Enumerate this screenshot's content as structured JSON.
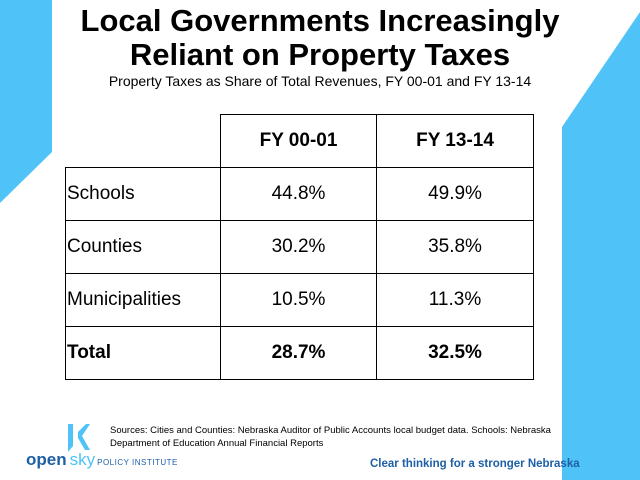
{
  "title": {
    "line1": "Local Governments Increasingly",
    "line2": "Reliant on Property Taxes"
  },
  "subtitle": "Property Taxes as Share of Total Revenues, FY 00-01 and FY 13-14",
  "table": {
    "headers": [
      "",
      "FY 00-01",
      "FY 13-14"
    ],
    "rows": [
      {
        "label": "Schools",
        "fy0001": "44.8%",
        "fy1314": "49.9%"
      },
      {
        "label": "Counties",
        "fy0001": "30.2%",
        "fy1314": "35.8%"
      },
      {
        "label": "Municipalities",
        "fy0001": "10.5%",
        "fy1314": "11.3%"
      },
      {
        "label": "Total",
        "fy0001": "28.7%",
        "fy1314": "32.5%"
      }
    ]
  },
  "sources": "Sources: Cities and Counties: Nebraska Auditor of Public Accounts local budget data. Schools: Nebraska Department of Education Annual Financial Reports",
  "logo": {
    "open": "open",
    "sky": "sky",
    "policy": "POLICY INSTITUTE"
  },
  "tagline": {
    "part1": "Clear thinking ",
    "part2": "for a stronger Nebraska"
  },
  "colors": {
    "accent_blue": "#4fc3f7",
    "brand_navy": "#1e5fa6"
  }
}
